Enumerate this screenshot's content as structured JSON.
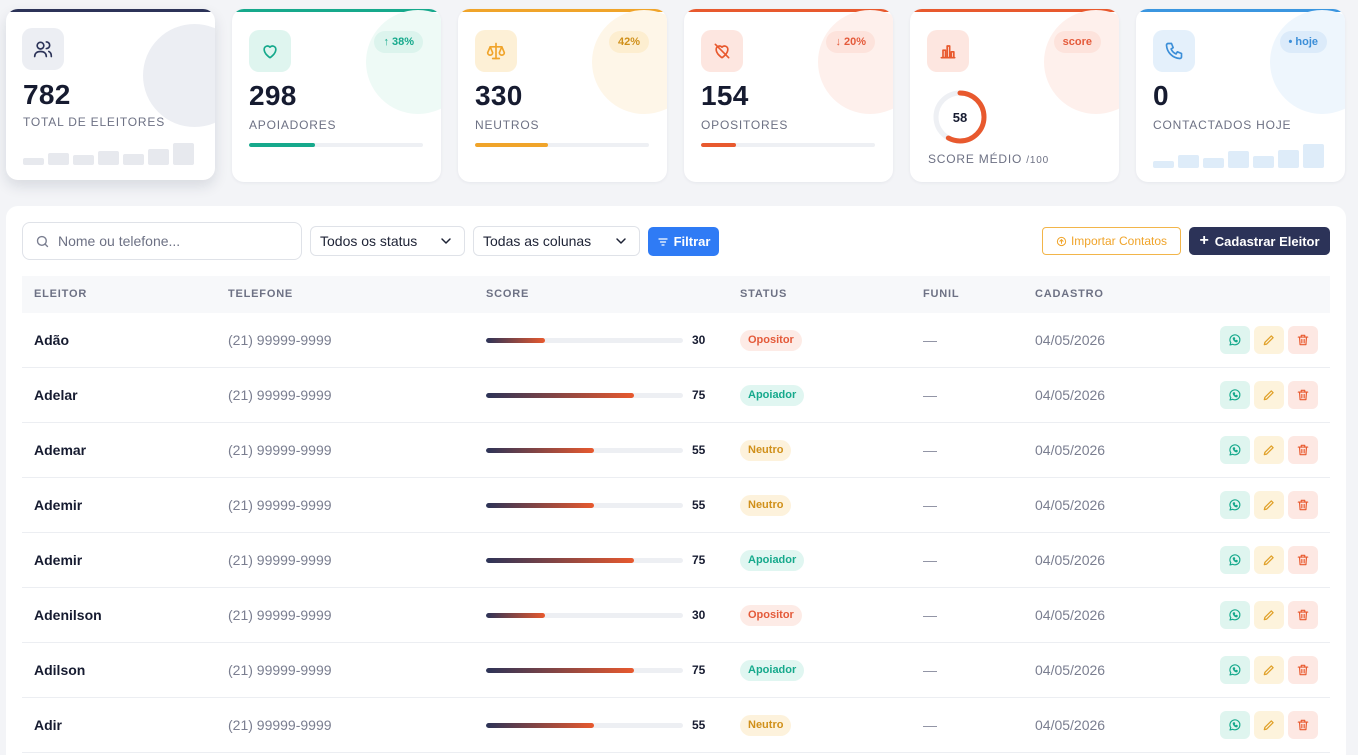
{
  "colors": {
    "navy": "#2c3358",
    "teal": "#16a98c",
    "amber": "#f0a42a",
    "coral": "#e8592e",
    "blue": "#2f7bf5"
  },
  "kpis": [
    {
      "icon": "users-icon",
      "value": "782",
      "label": "TOTAL DE ELEITORES",
      "sparkline": [
        0.3,
        0.5,
        0.4,
        0.6,
        0.45,
        0.65,
        0.9
      ]
    },
    {
      "icon": "heart-icon",
      "value": "298",
      "label": "APOIADORES",
      "badge": "38%",
      "badge_arrow": "↑",
      "progress": 0.38
    },
    {
      "icon": "scale-icon",
      "value": "330",
      "label": "NEUTROS",
      "badge": "42%",
      "progress": 0.42
    },
    {
      "icon": "heart-off-icon",
      "value": "154",
      "label": "OPOSITORES",
      "badge": "20%",
      "badge_arrow": "↓",
      "progress": 0.2
    },
    {
      "icon": "bar-chart-icon",
      "value": "58",
      "label": "SCORE MÉDIO",
      "label_suffix": "/100",
      "badge": "score",
      "gauge": 0.58
    },
    {
      "icon": "phone-icon",
      "value": "0",
      "label": "CONTACTADOS HOJE",
      "badge": "hoje",
      "badge_dot": "•",
      "sparkline": [
        0.3,
        0.55,
        0.4,
        0.7,
        0.5,
        0.75,
        1.0
      ]
    }
  ],
  "toolbar": {
    "search_placeholder": "Nome ou telefone...",
    "status_select": "Todos os status",
    "columns_select": "Todas as colunas",
    "filter_label": "Filtrar",
    "import_label": "Importar Contatos",
    "new_label": "Cadastrar Eleitor"
  },
  "table": {
    "columns": [
      "ELEITOR",
      "TELEFONE",
      "SCORE",
      "STATUS",
      "FUNIL",
      "CADASTRO"
    ],
    "rows": [
      {
        "name": "Adão",
        "phone": "(21) 99999-9999",
        "score": 30,
        "status": "Opositor",
        "funil": "—",
        "date": "04/05/2026"
      },
      {
        "name": "Adelar",
        "phone": "(21) 99999-9999",
        "score": 75,
        "status": "Apoiador",
        "funil": "—",
        "date": "04/05/2026"
      },
      {
        "name": "Ademar",
        "phone": "(21) 99999-9999",
        "score": 55,
        "status": "Neutro",
        "funil": "—",
        "date": "04/05/2026"
      },
      {
        "name": "Ademir",
        "phone": "(21) 99999-9999",
        "score": 55,
        "status": "Neutro",
        "funil": "—",
        "date": "04/05/2026"
      },
      {
        "name": "Ademir",
        "phone": "(21) 99999-9999",
        "score": 75,
        "status": "Apoiador",
        "funil": "—",
        "date": "04/05/2026"
      },
      {
        "name": "Adenilson",
        "phone": "(21) 99999-9999",
        "score": 30,
        "status": "Opositor",
        "funil": "—",
        "date": "04/05/2026"
      },
      {
        "name": "Adilson",
        "phone": "(21) 99999-9999",
        "score": 75,
        "status": "Apoiador",
        "funil": "—",
        "date": "04/05/2026"
      },
      {
        "name": "Adir",
        "phone": "(21) 99999-9999",
        "score": 55,
        "status": "Neutro",
        "funil": "—",
        "date": "04/05/2026"
      }
    ]
  }
}
